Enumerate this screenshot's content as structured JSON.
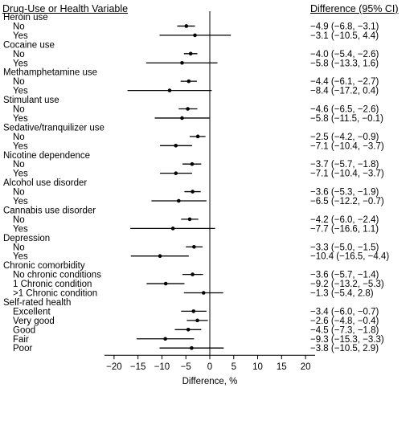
{
  "header": {
    "variable_label": "Drug-Use or Health Variable",
    "ci_label": "Difference (95% CI)"
  },
  "chart_data": {
    "type": "forest",
    "xlabel": "Difference, %",
    "xlim": [
      -22,
      22
    ],
    "xticks": [
      -20,
      -15,
      -10,
      -5,
      0,
      5,
      10,
      15,
      20
    ],
    "reference_line": 0,
    "groups": [
      {
        "label": "Heroin use",
        "rows": [
          {
            "label": "No",
            "estimate": -4.9,
            "lower": -6.8,
            "upper": -3.1,
            "ci_text": "−4.9 (−6.8, −3.1)"
          },
          {
            "label": "Yes",
            "estimate": -3.1,
            "lower": -10.5,
            "upper": 4.4,
            "ci_text": "−3.1 (−10.5, 4.4)"
          }
        ]
      },
      {
        "label": "Cocaine use",
        "rows": [
          {
            "label": "No",
            "estimate": -4.0,
            "lower": -5.4,
            "upper": -2.6,
            "ci_text": "−4.0 (−5.4, −2.6)"
          },
          {
            "label": "Yes",
            "estimate": -5.8,
            "lower": -13.3,
            "upper": 1.6,
            "ci_text": "−5.8 (−13.3, 1.6)"
          }
        ]
      },
      {
        "label": "Methamphetamine use",
        "rows": [
          {
            "label": "No",
            "estimate": -4.4,
            "lower": -6.1,
            "upper": -2.7,
            "ci_text": "−4.4 (−6.1, −2.7)"
          },
          {
            "label": "Yes",
            "estimate": -8.4,
            "lower": -17.2,
            "upper": 0.4,
            "ci_text": "−8.4 (−17.2, 0.4)"
          }
        ]
      },
      {
        "label": "Stimulant use",
        "rows": [
          {
            "label": "No",
            "estimate": -4.6,
            "lower": -6.5,
            "upper": -2.6,
            "ci_text": "−4.6 (−6.5, −2.6)"
          },
          {
            "label": "Yes",
            "estimate": -5.8,
            "lower": -11.5,
            "upper": -0.1,
            "ci_text": "−5.8 (−11.5, −0.1)"
          }
        ]
      },
      {
        "label": "Sedative/tranquilizer use",
        "rows": [
          {
            "label": "No",
            "estimate": -2.5,
            "lower": -4.2,
            "upper": -0.9,
            "ci_text": "−2.5 (−4.2, −0.9)"
          },
          {
            "label": "Yes",
            "estimate": -7.1,
            "lower": -10.4,
            "upper": -3.7,
            "ci_text": "−7.1 (−10.4, −3.7)"
          }
        ]
      },
      {
        "label": "Nicotine dependence",
        "rows": [
          {
            "label": "No",
            "estimate": -3.7,
            "lower": -5.7,
            "upper": -1.8,
            "ci_text": "−3.7 (−5.7, −1.8)"
          },
          {
            "label": "Yes",
            "estimate": -7.1,
            "lower": -10.4,
            "upper": -3.7,
            "ci_text": "−7.1 (−10.4, −3.7)"
          }
        ]
      },
      {
        "label": "Alcohol use disorder",
        "rows": [
          {
            "label": "No",
            "estimate": -3.6,
            "lower": -5.3,
            "upper": -1.9,
            "ci_text": "−3.6 (−5.3, −1.9)"
          },
          {
            "label": "Yes",
            "estimate": -6.5,
            "lower": -12.2,
            "upper": -0.7,
            "ci_text": "−6.5 (−12.2, −0.7)"
          }
        ]
      },
      {
        "label": "Cannabis use disorder",
        "rows": [
          {
            "label": "No",
            "estimate": -4.2,
            "lower": -6.0,
            "upper": -2.4,
            "ci_text": "−4.2 (−6.0, −2.4)"
          },
          {
            "label": "Yes",
            "estimate": -7.7,
            "lower": -16.6,
            "upper": 1.1,
            "ci_text": "−7.7 (−16.6, 1.1)"
          }
        ]
      },
      {
        "label": "Depression",
        "rows": [
          {
            "label": "No",
            "estimate": -3.3,
            "lower": -5.0,
            "upper": -1.5,
            "ci_text": "−3.3 (−5.0, −1.5)"
          },
          {
            "label": "Yes",
            "estimate": -10.4,
            "lower": -16.5,
            "upper": -4.4,
            "ci_text": "−10.4 (−16.5, −4.4)"
          }
        ]
      },
      {
        "label": "Chronic comorbidity",
        "rows": [
          {
            "label": "No chronic conditions",
            "estimate": -3.6,
            "lower": -5.7,
            "upper": -1.4,
            "ci_text": "−3.6 (−5.7, −1.4)"
          },
          {
            "label": "1 Chronic condition",
            "estimate": -9.2,
            "lower": -13.2,
            "upper": -5.3,
            "ci_text": "−9.2 (−13.2, −5.3)"
          },
          {
            "label": ">1 Chronic condition",
            "estimate": -1.3,
            "lower": -5.4,
            "upper": 2.8,
            "ci_text": "−1.3 (−5.4, 2.8)"
          }
        ]
      },
      {
        "label": "Self-rated health",
        "rows": [
          {
            "label": "Excellent",
            "estimate": -3.4,
            "lower": -6.0,
            "upper": -0.7,
            "ci_text": "−3.4 (−6.0, −0.7)"
          },
          {
            "label": "Very good",
            "estimate": -2.6,
            "lower": -4.8,
            "upper": -0.4,
            "ci_text": "−2.6 (−4.8, −0.4)"
          },
          {
            "label": "Good",
            "estimate": -4.5,
            "lower": -7.3,
            "upper": -1.8,
            "ci_text": "−4.5 (−7.3, −1.8)"
          },
          {
            "label": "Fair",
            "estimate": -9.3,
            "lower": -15.3,
            "upper": -3.3,
            "ci_text": "−9.3 (−15.3, −3.3)"
          },
          {
            "label": "Poor",
            "estimate": -3.8,
            "lower": -10.5,
            "upper": 2.9,
            "ci_text": "−3.8 (−10.5, 2.9)"
          }
        ]
      }
    ]
  }
}
